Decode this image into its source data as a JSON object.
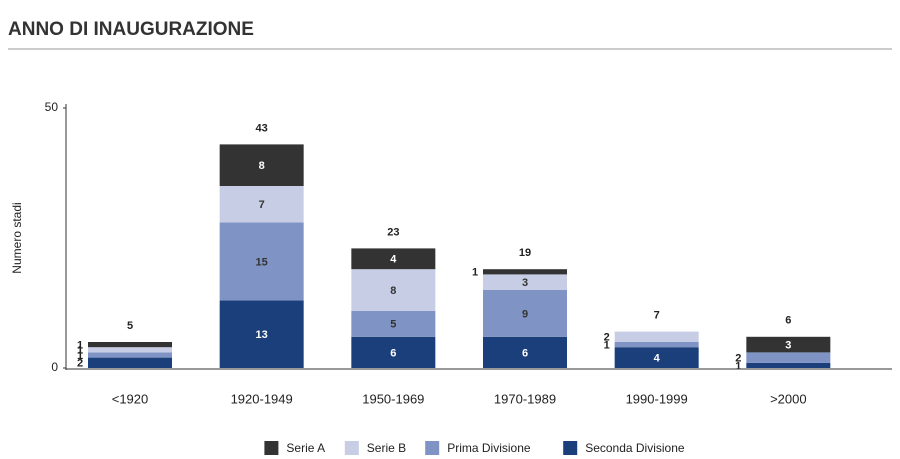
{
  "chart_data": {
    "type": "stacked-bar",
    "title": "ANNO DI INAUGURAZIONE",
    "y_label": "Numero stadi",
    "categories": [
      "<1920",
      "1920-1949",
      "1950-1969",
      "1970-1989",
      "1990-1999",
      ">2000"
    ],
    "series": [
      {
        "name": "Seconda Divisione",
        "color": "#1b3f7a",
        "values": [
          2,
          13,
          6,
          6,
          4,
          1
        ]
      },
      {
        "name": "Prima Divisione",
        "color": "#7f93c4",
        "values": [
          1,
          15,
          5,
          9,
          1,
          2
        ]
      },
      {
        "name": "Serie B",
        "color": "#c8cde6",
        "values": [
          1,
          7,
          8,
          3,
          2,
          0
        ]
      },
      {
        "name": "Serie A",
        "color": "#333333",
        "values": [
          1,
          8,
          4,
          1,
          0,
          3
        ]
      }
    ],
    "totals": [
      5,
      43,
      23,
      19,
      7,
      6
    ],
    "ylim": [
      0,
      50
    ],
    "yticks": [
      0,
      50
    ]
  }
}
